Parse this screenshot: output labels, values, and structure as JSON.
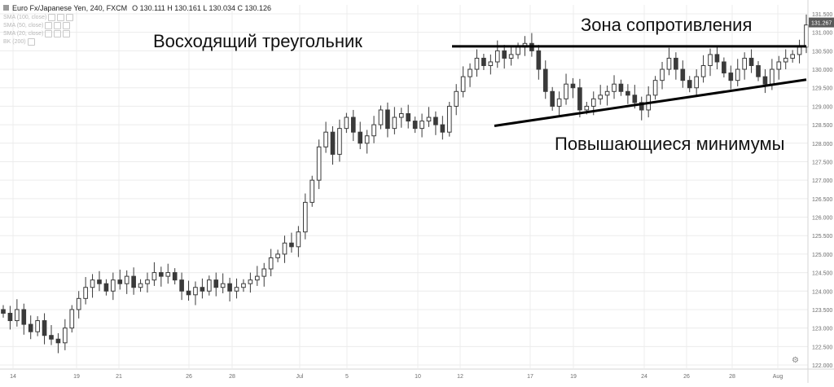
{
  "header": {
    "symbol": "Euro Fx/Japanese Yen, 240, FXCM",
    "ohlc": "O 130.111  H 130.161  L 130.034  C 130.126",
    "indicators": [
      "SMA (100, close)",
      "SMA (50, close)",
      "SMA (20, close)",
      "BK (200)"
    ]
  },
  "annotations": {
    "title": "Восходящий треугольник",
    "resistance": "Зона сопротивления",
    "higher_lows": "Повышающиеся минимумы"
  },
  "last_price_badge": "131.267",
  "colors": {
    "up": "#ffffff",
    "down": "#3a3a3a",
    "wick": "#3a3a3a",
    "grid": "#ececec",
    "line": "#000000"
  },
  "chart_data": {
    "type": "candlestick",
    "ylim": [
      122.0,
      131.5
    ],
    "y_ticks": [
      "131.500",
      "131.000",
      "130.500",
      "130.000",
      "129.500",
      "129.000",
      "128.500",
      "128.000",
      "127.500",
      "127.000",
      "126.500",
      "126.000",
      "125.500",
      "125.000",
      "124.500",
      "124.000",
      "123.500",
      "123.000",
      "122.500",
      "122.000"
    ],
    "x_ticks": [
      "14",
      "19",
      "21",
      "26",
      "28",
      "Jul",
      "5",
      "10",
      "12",
      "17",
      "19",
      "24",
      "26",
      "28",
      "Aug"
    ],
    "closes": [
      123.4,
      123.2,
      123.5,
      123.1,
      122.9,
      123.2,
      122.8,
      122.7,
      122.6,
      123.0,
      123.5,
      123.8,
      124.1,
      124.3,
      124.2,
      124.0,
      124.3,
      124.2,
      124.4,
      124.1,
      124.2,
      124.3,
      124.5,
      124.4,
      124.5,
      124.3,
      124.0,
      123.9,
      124.1,
      124.0,
      124.3,
      124.1,
      124.2,
      124.0,
      124.1,
      124.2,
      124.3,
      124.4,
      124.6,
      124.9,
      125.0,
      125.3,
      125.2,
      125.6,
      126.4,
      127.0,
      127.9,
      128.3,
      127.7,
      128.4,
      128.7,
      128.3,
      128.0,
      128.2,
      128.5,
      128.9,
      128.4,
      128.7,
      128.8,
      128.6,
      128.4,
      128.6,
      128.7,
      128.5,
      128.3,
      129.0,
      129.4,
      129.8,
      130.0,
      130.3,
      130.1,
      130.2,
      130.5,
      130.3,
      130.4,
      130.6,
      130.7,
      130.5,
      130.0,
      129.4,
      129.0,
      129.2,
      129.6,
      129.5,
      128.9,
      129.0,
      129.2,
      129.3,
      129.4,
      129.6,
      129.4,
      129.3,
      129.1,
      128.9,
      129.3,
      129.7,
      130.0,
      130.3,
      130.0,
      129.7,
      129.5,
      129.8,
      130.1,
      130.4,
      130.2,
      129.9,
      129.7,
      130.0,
      130.3,
      130.1,
      129.8,
      129.6,
      130.0,
      130.2,
      130.3,
      130.4,
      130.6,
      131.2
    ],
    "resistance_line": {
      "x": [
        "12",
        "Aug"
      ],
      "y": [
        130.62,
        130.62
      ]
    },
    "support_line": {
      "x": [
        "12",
        "Aug"
      ],
      "y": [
        128.47,
        129.72
      ]
    }
  }
}
